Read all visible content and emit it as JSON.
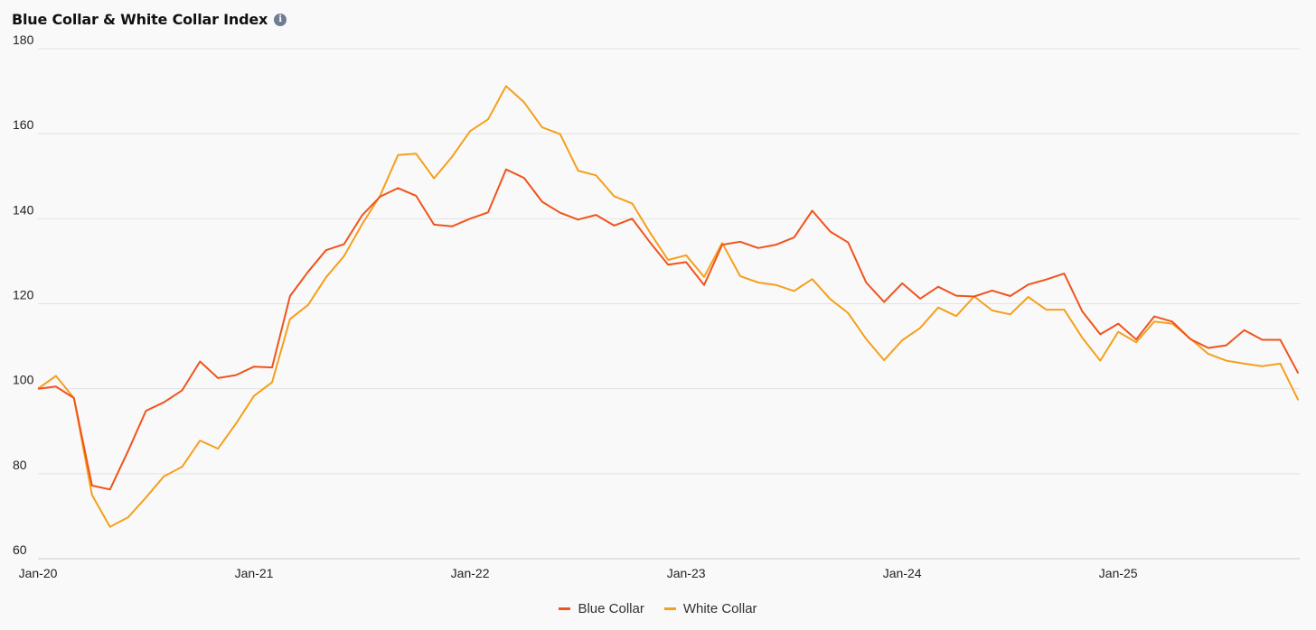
{
  "chart_data": {
    "type": "line",
    "title": "Blue Collar & White Collar Index",
    "xlabel": "",
    "ylabel": "",
    "ylim": [
      60,
      180
    ],
    "yticks": [
      60,
      80,
      100,
      120,
      140,
      160,
      180
    ],
    "x_ticks": [
      "Jan-20",
      "Jan-21",
      "Jan-22",
      "Jan-23",
      "Jan-24",
      "Jan-25"
    ],
    "x": [
      "2020-01",
      "2020-02",
      "2020-03",
      "2020-04",
      "2020-05",
      "2020-06",
      "2020-07",
      "2020-08",
      "2020-09",
      "2020-10",
      "2020-11",
      "2020-12",
      "2021-01",
      "2021-02",
      "2021-03",
      "2021-04",
      "2021-05",
      "2021-06",
      "2021-07",
      "2021-08",
      "2021-09",
      "2021-10",
      "2021-11",
      "2021-12",
      "2022-01",
      "2022-02",
      "2022-03",
      "2022-04",
      "2022-05",
      "2022-06",
      "2022-07",
      "2022-08",
      "2022-09",
      "2022-10",
      "2022-11",
      "2022-12",
      "2023-01",
      "2023-02",
      "2023-03",
      "2023-04",
      "2023-05",
      "2023-06",
      "2023-07",
      "2023-08",
      "2023-09",
      "2023-10",
      "2023-11",
      "2023-12",
      "2024-01",
      "2024-02",
      "2024-03",
      "2024-04",
      "2024-05",
      "2024-06",
      "2024-07",
      "2024-08",
      "2024-09",
      "2024-10",
      "2024-11",
      "2024-12",
      "2025-01",
      "2025-02",
      "2025-03",
      "2025-04",
      "2025-05",
      "2025-06",
      "2025-07",
      "2025-08",
      "2025-09",
      "2025-10",
      "2025-11"
    ],
    "series": [
      {
        "name": "Blue Collar",
        "color": "#f0531c",
        "values": [
          100.0,
          100.5,
          97.8,
          77.2,
          76.3,
          85.3,
          94.8,
          96.8,
          99.6,
          106.4,
          102.5,
          103.2,
          105.2,
          105.0,
          121.8,
          127.5,
          132.6,
          134.0,
          140.8,
          145.2,
          147.2,
          145.4,
          138.6,
          138.2,
          140.0,
          141.5,
          151.6,
          149.6,
          144.0,
          141.4,
          139.8,
          140.9,
          138.4,
          140.0,
          134.4,
          129.2,
          129.8,
          124.4,
          133.9,
          134.6,
          133.1,
          133.9,
          135.6,
          141.9,
          137.0,
          134.4,
          125.0,
          120.4,
          124.8,
          121.2,
          124.0,
          121.9,
          121.7,
          123.1,
          121.8,
          124.5,
          125.7,
          127.1,
          118.2,
          112.8,
          115.3,
          111.6,
          117.0,
          115.8,
          111.7,
          109.6,
          110.2,
          113.8,
          111.5,
          111.5,
          103.6
        ]
      },
      {
        "name": "White Collar",
        "color": "#f5a01a",
        "values": [
          100.0,
          103.0,
          97.8,
          75.0,
          67.5,
          69.7,
          74.4,
          79.4,
          81.6,
          87.8,
          85.9,
          91.8,
          98.3,
          101.5,
          116.4,
          119.7,
          126.2,
          131.2,
          138.7,
          145.4,
          155.0,
          155.3,
          149.5,
          154.6,
          160.6,
          163.4,
          171.2,
          167.4,
          161.5,
          159.9,
          151.3,
          150.2,
          145.3,
          143.6,
          136.7,
          130.3,
          131.4,
          126.3,
          134.3,
          126.5,
          125.0,
          124.4,
          123.0,
          125.8,
          121.1,
          117.8,
          111.7,
          106.7,
          111.4,
          114.3,
          119.1,
          117.1,
          121.7,
          118.4,
          117.5,
          121.6,
          118.6,
          118.6,
          112.0,
          106.6,
          113.4,
          110.9,
          115.8,
          115.3,
          111.8,
          108.2,
          106.6,
          105.9,
          105.3,
          105.9,
          97.3
        ]
      }
    ],
    "grid": true,
    "legend_position": "bottom-center"
  }
}
